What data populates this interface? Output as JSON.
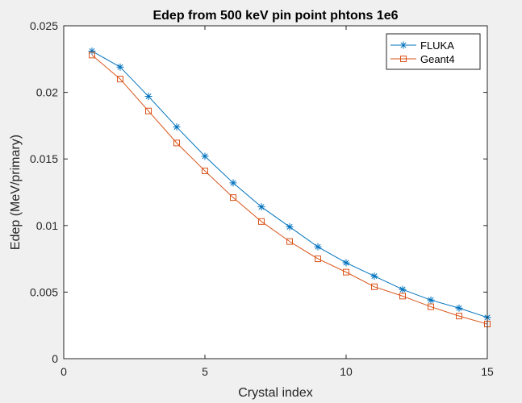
{
  "chart_data": {
    "type": "line",
    "title": "Edep from 500 keV pin point phtons 1e6",
    "xlabel": "Crystal index",
    "ylabel": "Edep (MeV/primary)",
    "xlim": [
      0,
      15
    ],
    "ylim": [
      0,
      0.025
    ],
    "xticks": [
      0,
      5,
      10,
      15
    ],
    "xtick_labels": [
      "0",
      "5",
      "10",
      "15"
    ],
    "yticks": [
      0,
      0.005,
      0.01,
      0.015,
      0.02,
      0.025
    ],
    "ytick_labels": [
      "0",
      "0.005",
      "0.01",
      "0.015",
      "0.02",
      "0.025"
    ],
    "grid": false,
    "legend_position": "top-right",
    "x": [
      1,
      2,
      3,
      4,
      5,
      6,
      7,
      8,
      9,
      10,
      11,
      12,
      13,
      14,
      15
    ],
    "series": [
      {
        "name": "FLUKA",
        "color": "#0072BD",
        "marker": "asterisk",
        "values": [
          0.0231,
          0.0219,
          0.0197,
          0.0174,
          0.0152,
          0.0132,
          0.0114,
          0.0099,
          0.0084,
          0.0072,
          0.0062,
          0.0052,
          0.0044,
          0.0038,
          0.0031
        ]
      },
      {
        "name": "Geant4",
        "color": "#D95319",
        "marker": "square",
        "values": [
          0.0228,
          0.021,
          0.0186,
          0.0162,
          0.0141,
          0.0121,
          0.0103,
          0.0088,
          0.0075,
          0.0065,
          0.0054,
          0.0047,
          0.0039,
          0.0032,
          0.0026
        ]
      }
    ]
  }
}
